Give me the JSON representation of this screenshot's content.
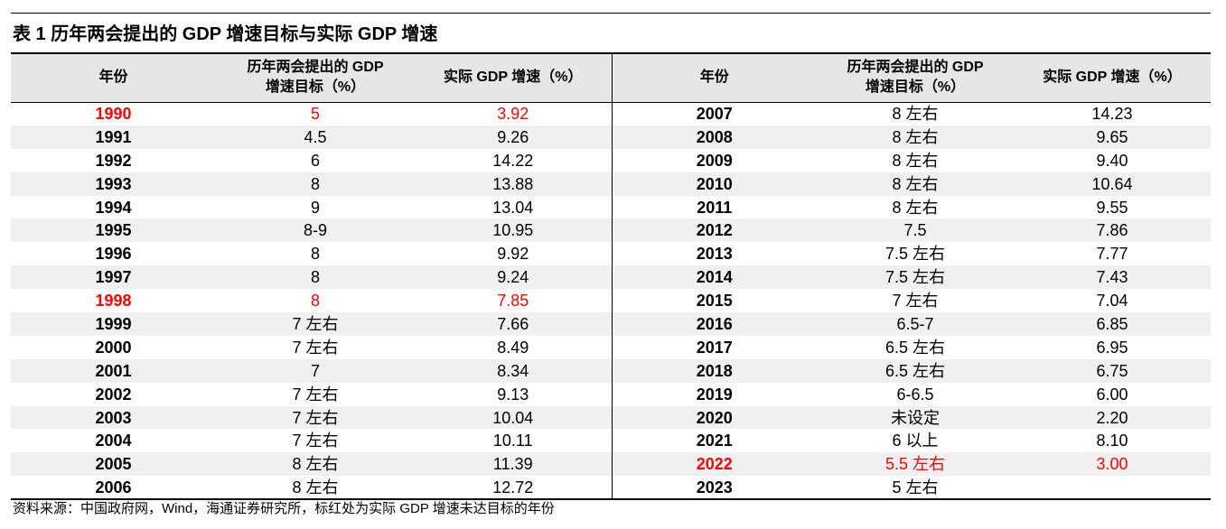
{
  "title": "表 1 历年两会提出的 GDP 增速目标与实际 GDP 增速",
  "headers": {
    "year": "年份",
    "target_line1": "历年两会提出的 GDP",
    "target_line2": "增速目标（%）",
    "actual": "实际 GDP 增速（%）"
  },
  "highlight_color": "#ff0000",
  "rows": [
    {
      "l": {
        "year": "1990",
        "target": "5",
        "actual": "3.92",
        "red": true
      },
      "r": {
        "year": "2007",
        "target": "8 左右",
        "actual": "14.23",
        "red": false
      }
    },
    {
      "l": {
        "year": "1991",
        "target": "4.5",
        "actual": "9.26",
        "red": false
      },
      "r": {
        "year": "2008",
        "target": "8 左右",
        "actual": "9.65",
        "red": false
      }
    },
    {
      "l": {
        "year": "1992",
        "target": "6",
        "actual": "14.22",
        "red": false
      },
      "r": {
        "year": "2009",
        "target": "8 左右",
        "actual": "9.40",
        "red": false
      }
    },
    {
      "l": {
        "year": "1993",
        "target": "8",
        "actual": "13.88",
        "red": false
      },
      "r": {
        "year": "2010",
        "target": "8 左右",
        "actual": "10.64",
        "red": false
      }
    },
    {
      "l": {
        "year": "1994",
        "target": "9",
        "actual": "13.04",
        "red": false
      },
      "r": {
        "year": "2011",
        "target": "8 左右",
        "actual": "9.55",
        "red": false
      }
    },
    {
      "l": {
        "year": "1995",
        "target": "8-9",
        "actual": "10.95",
        "red": false
      },
      "r": {
        "year": "2012",
        "target": "7.5",
        "actual": "7.86",
        "red": false
      }
    },
    {
      "l": {
        "year": "1996",
        "target": "8",
        "actual": "9.92",
        "red": false
      },
      "r": {
        "year": "2013",
        "target": "7.5 左右",
        "actual": "7.77",
        "red": false
      }
    },
    {
      "l": {
        "year": "1997",
        "target": "8",
        "actual": "9.24",
        "red": false
      },
      "r": {
        "year": "2014",
        "target": "7.5 左右",
        "actual": "7.43",
        "red": false
      }
    },
    {
      "l": {
        "year": "1998",
        "target": "8",
        "actual": "7.85",
        "red": true
      },
      "r": {
        "year": "2015",
        "target": "7 左右",
        "actual": "7.04",
        "red": false
      }
    },
    {
      "l": {
        "year": "1999",
        "target": "7 左右",
        "actual": "7.66",
        "red": false
      },
      "r": {
        "year": "2016",
        "target": "6.5-7",
        "actual": "6.85",
        "red": false
      }
    },
    {
      "l": {
        "year": "2000",
        "target": "7 左右",
        "actual": "8.49",
        "red": false
      },
      "r": {
        "year": "2017",
        "target": "6.5 左右",
        "actual": "6.95",
        "red": false
      }
    },
    {
      "l": {
        "year": "2001",
        "target": "7",
        "actual": "8.34",
        "red": false
      },
      "r": {
        "year": "2018",
        "target": "6.5 左右",
        "actual": "6.75",
        "red": false
      }
    },
    {
      "l": {
        "year": "2002",
        "target": "7 左右",
        "actual": "9.13",
        "red": false
      },
      "r": {
        "year": "2019",
        "target": "6-6.5",
        "actual": "6.00",
        "red": false
      }
    },
    {
      "l": {
        "year": "2003",
        "target": "7 左右",
        "actual": "10.04",
        "red": false
      },
      "r": {
        "year": "2020",
        "target": "未设定",
        "actual": "2.20",
        "red": false
      }
    },
    {
      "l": {
        "year": "2004",
        "target": "7 左右",
        "actual": "10.11",
        "red": false
      },
      "r": {
        "year": "2021",
        "target": "6 以上",
        "actual": "8.10",
        "red": false
      }
    },
    {
      "l": {
        "year": "2005",
        "target": "8 左右",
        "actual": "11.39",
        "red": false
      },
      "r": {
        "year": "2022",
        "target": "5.5 左右",
        "actual": "3.00",
        "red": true
      }
    },
    {
      "l": {
        "year": "2006",
        "target": "8 左右",
        "actual": "12.72",
        "red": false
      },
      "r": {
        "year": "2023",
        "target": "5 左右",
        "actual": "",
        "red": false
      }
    }
  ],
  "source": "资料来源：中国政府网，Wind，海通证券研究所，标红处为实际 GDP 增速未达目标的年份"
}
